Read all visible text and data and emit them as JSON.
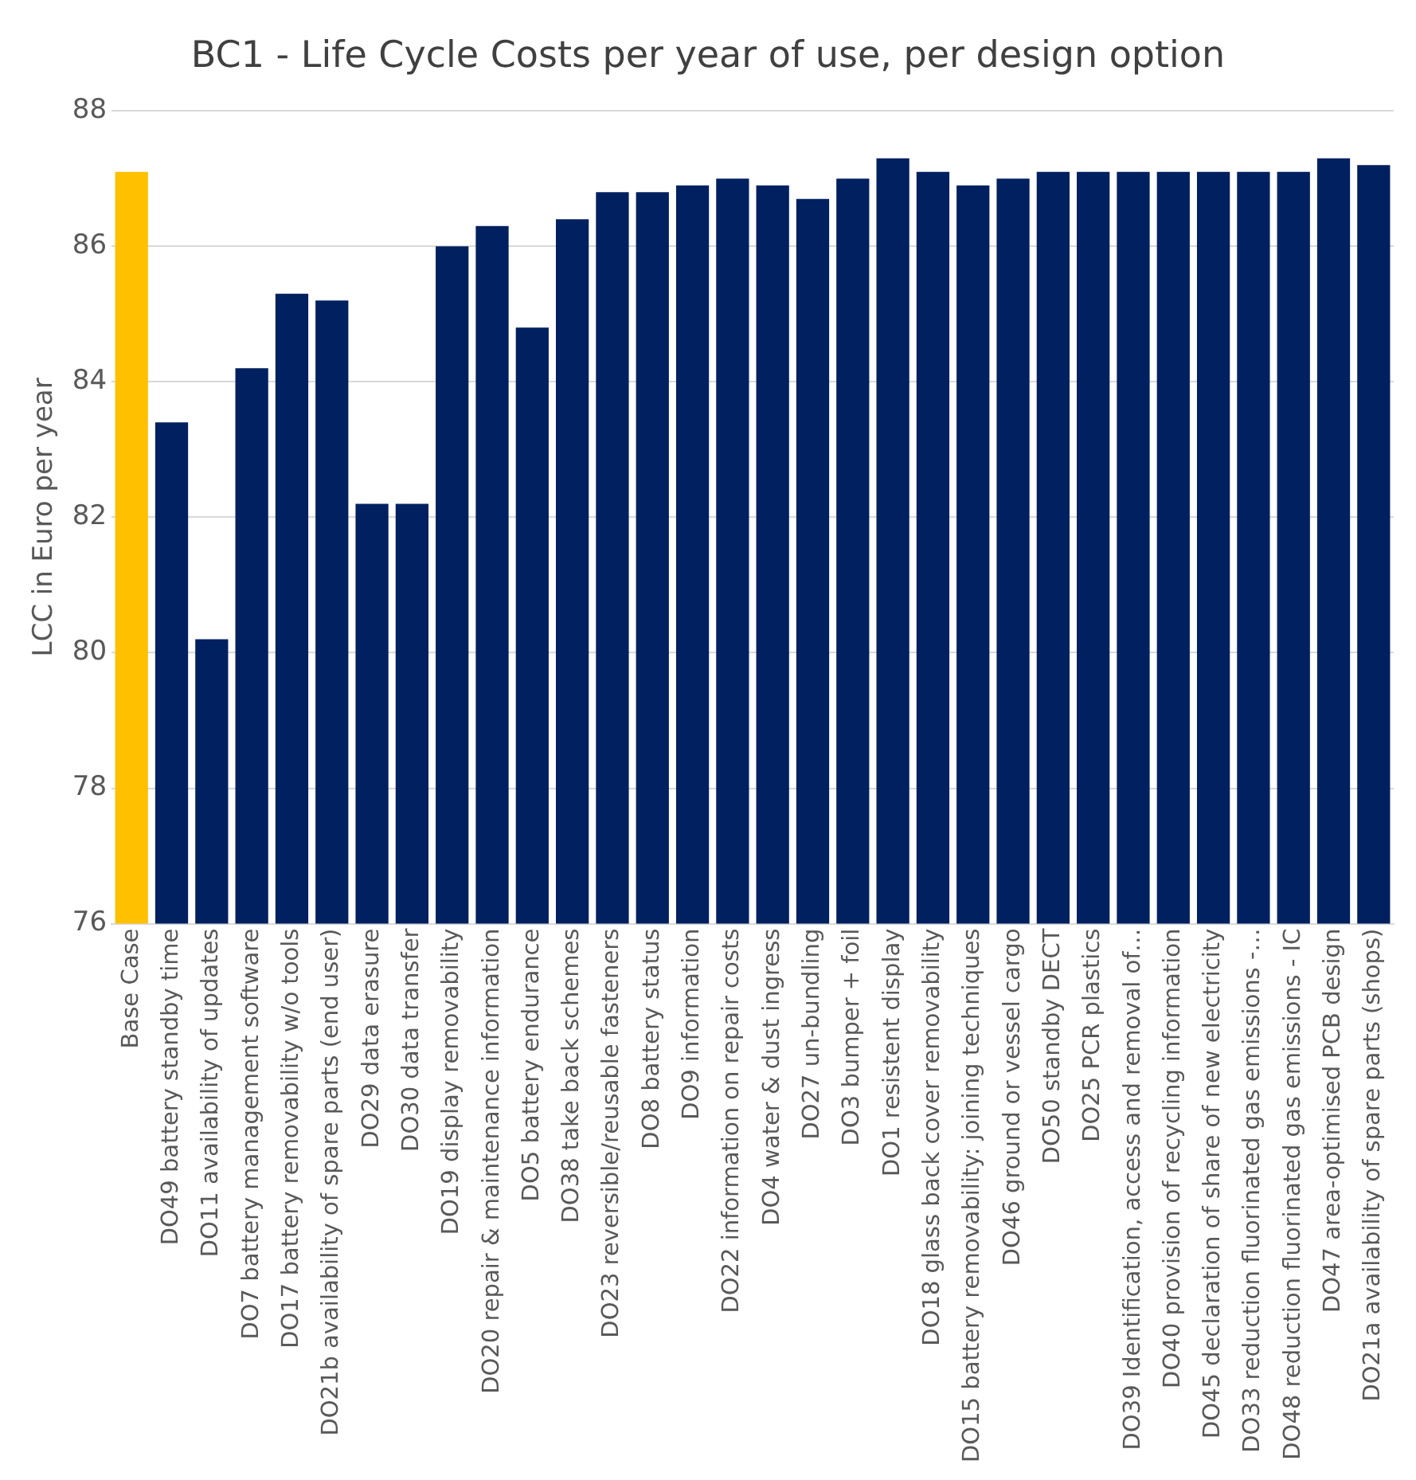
{
  "chart_data": {
    "type": "bar",
    "title": "BC1 - Life Cycle Costs per year of use, per design option",
    "ylabel": "LCC in Euro per year",
    "categories": [
      "Base Case",
      "DO49 battery standby time",
      "DO11 availability of updates",
      "DO7 battery management software",
      "DO17 battery removability w/o tools",
      "DO21b availability of spare parts (end user)",
      "DO29 data erasure",
      "DO30 data transfer",
      "DO19 display removability",
      "DO20 repair & maintenance information",
      "DO5 battery endurance",
      "DO38 take back schemes",
      "DO23 reversible/reusable fasteners",
      "DO8 battery status",
      "DO9 information",
      "DO22 information on repair costs",
      "DO4 water & dust ingress",
      "DO27 un-bundling",
      "DO3 bumper + foil",
      "DO1 resistent display",
      "DO18 glass back cover removability",
      "DO15 battery removability: joining techniques",
      "DO46 ground or vessel cargo",
      "DO50 standby DECT",
      "DO25 PCR plastics",
      "DO39 Identification, access and removal of…",
      "DO40 provision of recycling information",
      "DO45 declaration of share of new electricity",
      "DO33 reduction fluorinated gas emissions -…",
      "DO48 reduction fluorinated gas emissions - IC",
      "DO47 area-optimised PCB design",
      "DO21a availability of spare parts (shops)"
    ],
    "values": [
      87.1,
      83.4,
      80.2,
      84.2,
      85.3,
      85.2,
      82.2,
      82.2,
      86.0,
      86.3,
      84.8,
      86.4,
      86.8,
      86.8,
      86.9,
      87.0,
      86.9,
      86.7,
      87.0,
      87.3,
      87.1,
      86.9,
      87.0,
      87.1,
      87.1,
      87.1,
      87.1,
      87.1,
      87.1,
      87.1,
      87.3,
      87.2
    ],
    "colors": [
      "#ffc000",
      "#002060",
      "#002060",
      "#002060",
      "#002060",
      "#002060",
      "#002060",
      "#002060",
      "#002060",
      "#002060",
      "#002060",
      "#002060",
      "#002060",
      "#002060",
      "#002060",
      "#002060",
      "#002060",
      "#002060",
      "#002060",
      "#002060",
      "#002060",
      "#002060",
      "#002060",
      "#002060",
      "#002060",
      "#002060",
      "#002060",
      "#002060",
      "#002060",
      "#002060",
      "#002060",
      "#002060"
    ],
    "ylim": [
      76,
      88
    ],
    "yticks": [
      76,
      78,
      80,
      82,
      84,
      86,
      88
    ],
    "grid": "y",
    "legend": false
  }
}
